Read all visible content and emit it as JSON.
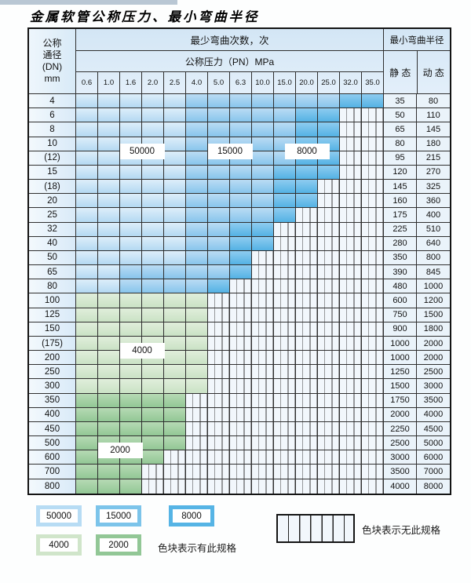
{
  "page": {
    "title": "金属软管公称压力、最小弯曲半径"
  },
  "table": {
    "dn_header_lines": [
      "公称",
      "通径",
      "(DN)",
      "mm"
    ],
    "bend_times_header": "最少弯曲次数，次",
    "pressure_header": "公称压力（PN）MPa",
    "pressure_columns": [
      "0.6",
      "1.0",
      "1.6",
      "2.0",
      "2.5",
      "4.0",
      "5.0",
      "6.3",
      "10.0",
      "15.0",
      "20.0",
      "25.0",
      "32.0",
      "35.0"
    ],
    "radius_header": "最小弯曲半径",
    "static_label": "静 态",
    "dynamic_label": "动 态",
    "rows": [
      {
        "dn": "4",
        "static": "35",
        "dynamic": "80",
        "segments": [
          [
            "50000",
            5
          ],
          [
            "15000",
            7
          ],
          [
            "8000",
            2
          ]
        ]
      },
      {
        "dn": "6",
        "static": "50",
        "dynamic": "110",
        "segments": [
          [
            "50000",
            5
          ],
          [
            "15000",
            5
          ],
          [
            "8000",
            2
          ],
          [
            "none",
            2
          ]
        ]
      },
      {
        "dn": "8",
        "static": "65",
        "dynamic": "145",
        "segments": [
          [
            "50000",
            5
          ],
          [
            "15000",
            5
          ],
          [
            "8000",
            2
          ],
          [
            "none",
            2
          ]
        ]
      },
      {
        "dn": "10",
        "static": "80",
        "dynamic": "180",
        "segments": [
          [
            "50000",
            5
          ],
          [
            "15000",
            5
          ],
          [
            "8000",
            2
          ],
          [
            "none",
            2
          ]
        ]
      },
      {
        "dn": "(12)",
        "static": "95",
        "dynamic": "215",
        "segments": [
          [
            "50000",
            5
          ],
          [
            "15000",
            5
          ],
          [
            "8000",
            2
          ],
          [
            "none",
            2
          ]
        ]
      },
      {
        "dn": "15",
        "static": "120",
        "dynamic": "270",
        "segments": [
          [
            "50000",
            5
          ],
          [
            "15000",
            4
          ],
          [
            "8000",
            3
          ],
          [
            "none",
            2
          ]
        ]
      },
      {
        "dn": "(18)",
        "static": "145",
        "dynamic": "325",
        "segments": [
          [
            "50000",
            5
          ],
          [
            "15000",
            4
          ],
          [
            "8000",
            2
          ],
          [
            "none",
            3
          ]
        ]
      },
      {
        "dn": "20",
        "static": "160",
        "dynamic": "360",
        "segments": [
          [
            "50000",
            5
          ],
          [
            "15000",
            4
          ],
          [
            "8000",
            2
          ],
          [
            "none",
            3
          ]
        ]
      },
      {
        "dn": "25",
        "static": "175",
        "dynamic": "400",
        "segments": [
          [
            "50000",
            5
          ],
          [
            "15000",
            4
          ],
          [
            "8000",
            1
          ],
          [
            "none",
            4
          ]
        ]
      },
      {
        "dn": "32",
        "static": "225",
        "dynamic": "510",
        "segments": [
          [
            "50000",
            5
          ],
          [
            "15000",
            2
          ],
          [
            "8000",
            2
          ],
          [
            "none",
            5
          ]
        ]
      },
      {
        "dn": "40",
        "static": "280",
        "dynamic": "640",
        "segments": [
          [
            "50000",
            5
          ],
          [
            "15000",
            2
          ],
          [
            "8000",
            2
          ],
          [
            "none",
            5
          ]
        ]
      },
      {
        "dn": "50",
        "static": "350",
        "dynamic": "800",
        "segments": [
          [
            "50000",
            5
          ],
          [
            "15000",
            2
          ],
          [
            "8000",
            1
          ],
          [
            "none",
            6
          ]
        ]
      },
      {
        "dn": "65",
        "static": "390",
        "dynamic": "845",
        "segments": [
          [
            "50000",
            2
          ],
          [
            "15000",
            5
          ],
          [
            "8000",
            1
          ],
          [
            "none",
            6
          ]
        ]
      },
      {
        "dn": "80",
        "static": "480",
        "dynamic": "1000",
        "segments": [
          [
            "50000",
            2
          ],
          [
            "15000",
            4
          ],
          [
            "8000",
            1
          ],
          [
            "none",
            7
          ]
        ]
      },
      {
        "dn": "100",
        "static": "600",
        "dynamic": "1200",
        "segments": [
          [
            "4000",
            6
          ],
          [
            "none",
            8
          ]
        ]
      },
      {
        "dn": "125",
        "static": "750",
        "dynamic": "1500",
        "segments": [
          [
            "4000",
            6
          ],
          [
            "none",
            8
          ]
        ]
      },
      {
        "dn": "150",
        "static": "900",
        "dynamic": "1800",
        "segments": [
          [
            "4000",
            6
          ],
          [
            "none",
            8
          ]
        ]
      },
      {
        "dn": "(175)",
        "static": "1000",
        "dynamic": "2000",
        "segments": [
          [
            "4000",
            6
          ],
          [
            "none",
            8
          ]
        ]
      },
      {
        "dn": "200",
        "static": "1000",
        "dynamic": "2000",
        "segments": [
          [
            "4000",
            6
          ],
          [
            "none",
            8
          ]
        ]
      },
      {
        "dn": "250",
        "static": "1250",
        "dynamic": "2500",
        "segments": [
          [
            "4000",
            6
          ],
          [
            "none",
            8
          ]
        ]
      },
      {
        "dn": "300",
        "static": "1500",
        "dynamic": "3000",
        "segments": [
          [
            "4000",
            6
          ],
          [
            "none",
            8
          ]
        ]
      },
      {
        "dn": "350",
        "static": "1750",
        "dynamic": "3500",
        "segments": [
          [
            "2000",
            5
          ],
          [
            "none",
            9
          ]
        ]
      },
      {
        "dn": "400",
        "static": "2000",
        "dynamic": "4000",
        "segments": [
          [
            "2000",
            5
          ],
          [
            "none",
            9
          ]
        ]
      },
      {
        "dn": "450",
        "static": "2250",
        "dynamic": "4500",
        "segments": [
          [
            "2000",
            5
          ],
          [
            "none",
            9
          ]
        ]
      },
      {
        "dn": "500",
        "static": "2500",
        "dynamic": "5000",
        "segments": [
          [
            "2000",
            5
          ],
          [
            "none",
            9
          ]
        ]
      },
      {
        "dn": "600",
        "static": "3000",
        "dynamic": "6000",
        "segments": [
          [
            "2000",
            4
          ],
          [
            "none",
            10
          ]
        ]
      },
      {
        "dn": "700",
        "static": "3500",
        "dynamic": "7000",
        "segments": [
          [
            "2000",
            3
          ],
          [
            "none",
            11
          ]
        ]
      },
      {
        "dn": "800",
        "static": "4000",
        "dynamic": "8000",
        "segments": [
          [
            "2000",
            3
          ],
          [
            "none",
            11
          ]
        ]
      }
    ],
    "zone_labels": [
      {
        "text": "50000",
        "col": 2,
        "col_span": 2,
        "row": 3,
        "row_span": 2
      },
      {
        "text": "15000",
        "col": 6,
        "col_span": 2,
        "row": 3,
        "row_span": 2
      },
      {
        "text": "8000",
        "col": 9,
        "col_span": 3,
        "row": 3,
        "row_span": 2
      },
      {
        "text": "4000",
        "col": 2,
        "col_span": 2,
        "row": 17,
        "row_span": 2
      },
      {
        "text": "2000",
        "col": 1,
        "col_span": 2,
        "row": 24,
        "row_span": 2
      }
    ]
  },
  "legend": {
    "items": [
      {
        "label": "50000",
        "zone": "50000"
      },
      {
        "label": "15000",
        "zone": "15000"
      },
      {
        "label": "8000",
        "zone": "8000"
      },
      {
        "label": "4000",
        "zone": "4000"
      },
      {
        "label": "2000",
        "zone": "2000"
      }
    ],
    "has_spec_text": "色块表示有此规格",
    "no_spec_text": "色块表示无此规格"
  },
  "colors": {
    "zone_50000": "#b4d9f2",
    "zone_15000": "#88c5ec",
    "zone_8000": "#54b2e4",
    "zone_4000": "#cae2c5",
    "zone_2000": "#92c795",
    "header_bg": "#d3e6f5",
    "grid_line": "#2f2f2f"
  }
}
